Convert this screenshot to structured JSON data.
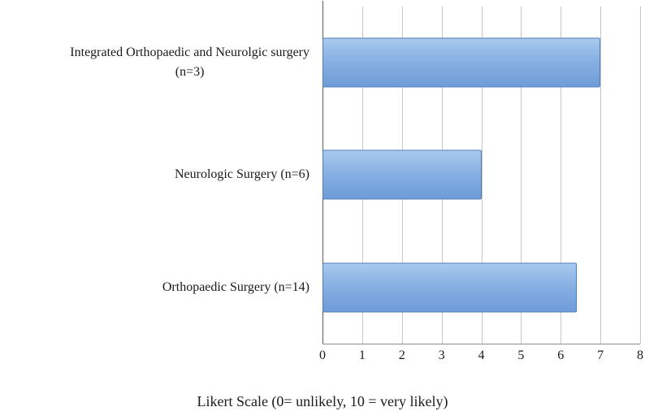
{
  "chart_data": {
    "type": "bar",
    "orientation": "horizontal",
    "title": "",
    "categories": [
      "Integrated Orthopaedic and Neurolgic surgery\n(n=3)",
      "Neurologic Surgery (n=6)",
      "Orthopaedic Surgery (n=14)"
    ],
    "values": [
      7,
      4,
      6.4
    ],
    "xlabel": "Likert Scale (0= unlikely, 10 = very likely)",
    "ylabel": "",
    "xlim": [
      0,
      8
    ],
    "xticks": [
      0,
      1,
      2,
      3,
      4,
      5,
      6,
      7,
      8
    ],
    "grid": true,
    "legend": "none",
    "colors": {
      "bar_top": "#a9c9ee",
      "bar_mid": "#85aee2",
      "bar_bottom": "#6f9cd8",
      "bar_border": "#4f7dbb",
      "gridline": "#c6c6c6",
      "axis": "#5a5a5a",
      "background": "#ffffff"
    }
  }
}
